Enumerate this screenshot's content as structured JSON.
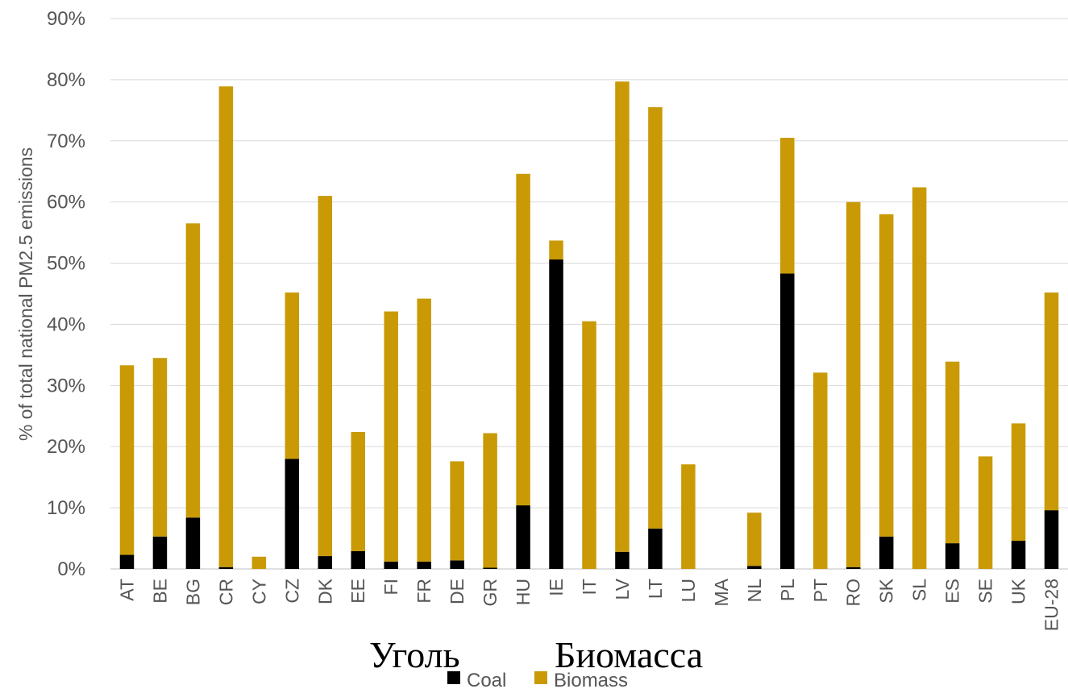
{
  "chart_data": {
    "type": "bar",
    "stacked": true,
    "categories": [
      "AT",
      "BE",
      "BG",
      "CR",
      "CY",
      "CZ",
      "DK",
      "EE",
      "FI",
      "FR",
      "DE",
      "GR",
      "HU",
      "IE",
      "IT",
      "LV",
      "LT",
      "LU",
      "MA",
      "NL",
      "PL",
      "PT",
      "RO",
      "SK",
      "SL",
      "ES",
      "SE",
      "UK",
      "EU-28"
    ],
    "series": [
      {
        "name": "Coal",
        "color": "#000000",
        "values": [
          2.3,
          5.3,
          8.4,
          0.3,
          0,
          18.0,
          2.1,
          2.9,
          1.2,
          1.2,
          1.4,
          0.2,
          10.4,
          50.6,
          0,
          2.8,
          6.6,
          0,
          0,
          0.5,
          48.3,
          0,
          0.3,
          5.3,
          0,
          4.2,
          0,
          4.6,
          9.6
        ]
      },
      {
        "name": "Biomass",
        "color": "#c99a06",
        "values": [
          31.0,
          29.2,
          48.1,
          78.6,
          2.0,
          27.2,
          58.9,
          19.5,
          40.9,
          43.0,
          16.2,
          22.0,
          54.2,
          3.1,
          40.5,
          76.9,
          68.9,
          17.1,
          0,
          8.7,
          22.2,
          32.1,
          59.7,
          52.7,
          62.4,
          29.7,
          18.4,
          19.2,
          35.6
        ]
      }
    ],
    "ylabel": "% of total national PM2.5 emissions",
    "ylim": [
      0,
      90
    ],
    "yticks": [
      0,
      10,
      20,
      30,
      40,
      50,
      60,
      70,
      80,
      90
    ],
    "ytick_labels": [
      "0%",
      "10%",
      "20%",
      "30%",
      "40%",
      "50%",
      "60%",
      "70%",
      "80%",
      "90%"
    ],
    "grid": true,
    "legend_position": "bottom-center"
  },
  "overlay": {
    "coal_ru": "Уголь",
    "biomass_ru": "Биомасса"
  }
}
